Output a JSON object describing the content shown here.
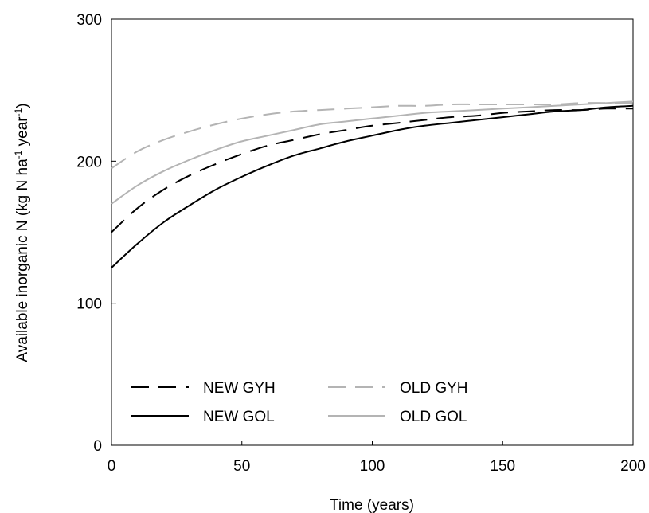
{
  "chart_data": {
    "type": "line",
    "title": "",
    "xlabel": "Time (years)",
    "ylabel": {
      "main": "Available inorganic N (kg N ha",
      "sup1": "-1",
      "mid": " year",
      "sup2": "-1",
      "end": ")"
    },
    "xlim": [
      0,
      200
    ],
    "ylim": [
      0,
      300
    ],
    "xticks": [
      0,
      50,
      100,
      150,
      200
    ],
    "yticks": [
      0,
      100,
      200,
      300
    ],
    "grid": false,
    "legend_position": "bottom-left",
    "x": [
      0,
      10,
      20,
      30,
      40,
      50,
      60,
      70,
      80,
      90,
      100,
      110,
      120,
      130,
      140,
      150,
      160,
      170,
      180,
      190,
      200
    ],
    "series": [
      {
        "name": "NEW GYH",
        "color": "#000000",
        "style": "dashed",
        "values": [
          150,
          167,
          180,
          190,
          198,
          205,
          211,
          215,
          219,
          222,
          225,
          227,
          229,
          231,
          232,
          234,
          235,
          236,
          236,
          237,
          237
        ]
      },
      {
        "name": "OLD GYH",
        "color": "#b4b4b4",
        "style": "dashed",
        "values": [
          195,
          207,
          215,
          221,
          226,
          230,
          233,
          235,
          236,
          237,
          238,
          239,
          239,
          240,
          240,
          240,
          240,
          240,
          241,
          241,
          241
        ]
      },
      {
        "name": "NEW GOL",
        "color": "#000000",
        "style": "solid",
        "values": [
          125,
          142,
          157,
          169,
          180,
          189,
          197,
          204,
          209,
          214,
          218,
          222,
          225,
          227,
          229,
          231,
          233,
          235,
          236,
          238,
          239
        ]
      },
      {
        "name": "OLD GOL",
        "color": "#b4b4b4",
        "style": "solid",
        "values": [
          170,
          183,
          193,
          201,
          208,
          214,
          218,
          222,
          226,
          228,
          230,
          232,
          234,
          235,
          236,
          237,
          238,
          239,
          240,
          241,
          242
        ]
      }
    ]
  }
}
